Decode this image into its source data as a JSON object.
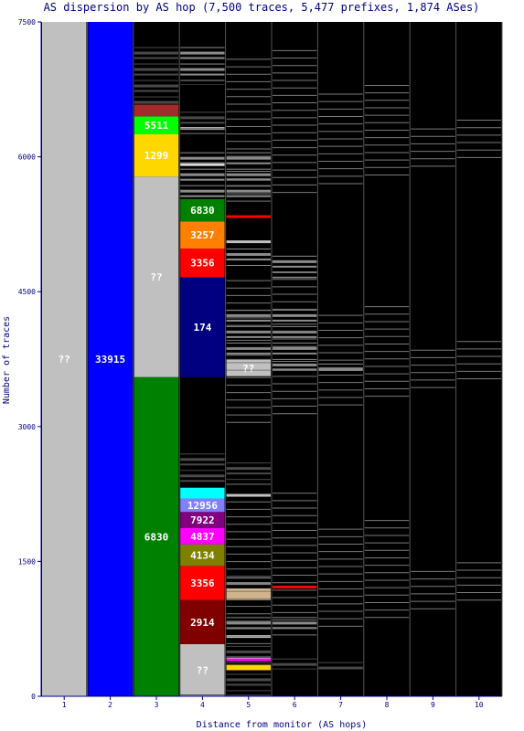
{
  "chart_data": {
    "type": "bar",
    "title": "AS dispersion by AS hop (7,500 traces, 5,477 prefixes, 1,874 ASes)",
    "xlabel": "Distance from monitor (AS hops)",
    "ylabel": "Number of traces",
    "ylim": [
      0,
      7500
    ],
    "yticks": [
      "0",
      "1500",
      "3000",
      "4500",
      "6000",
      "7500"
    ],
    "categories": [
      "1",
      "2",
      "3",
      "4",
      "5",
      "6",
      "7",
      "8",
      "9",
      "10"
    ],
    "colors": {
      "background": "#000000",
      "unknown": "#c0c0c0",
      "minor_light": "#8c8c8c",
      "minor_dark": "#4a4a4a",
      "label_text": "#ffffff",
      "title_text": "#000080"
    },
    "segments": [
      {
        "hop": 1,
        "from": 0,
        "to": 7500,
        "label": "??",
        "color": "#c0c0c0"
      },
      {
        "hop": 2,
        "from": 0,
        "to": 7500,
        "label": "33915",
        "color": "#0000ff"
      },
      {
        "hop": 3,
        "from": 0,
        "to": 3550,
        "label": "6830",
        "color": "#008000"
      },
      {
        "hop": 3,
        "from": 3550,
        "to": 5780,
        "label": "??",
        "color": "#c0c0c0"
      },
      {
        "hop": 3,
        "from": 5780,
        "to": 6250,
        "label": "1299",
        "color": "#ffd700"
      },
      {
        "hop": 3,
        "from": 6250,
        "to": 6450,
        "label": "5511",
        "color": "#00ff00"
      },
      {
        "hop": 3,
        "from": 6450,
        "to": 6580,
        "label": "",
        "color": "#a52a2a"
      },
      {
        "hop": 4,
        "from": 0,
        "to": 580,
        "label": "??",
        "color": "#c0c0c0"
      },
      {
        "hop": 4,
        "from": 580,
        "to": 1070,
        "label": "2914",
        "color": "#800000"
      },
      {
        "hop": 4,
        "from": 1070,
        "to": 1450,
        "label": "3356",
        "color": "#ff0000"
      },
      {
        "hop": 4,
        "from": 1450,
        "to": 1690,
        "label": "4134",
        "color": "#808000"
      },
      {
        "hop": 4,
        "from": 1690,
        "to": 1870,
        "label": "4837",
        "color": "#ff00ff"
      },
      {
        "hop": 4,
        "from": 1870,
        "to": 2050,
        "label": "7922",
        "color": "#800080"
      },
      {
        "hop": 4,
        "from": 2050,
        "to": 2200,
        "label": "12956",
        "color": "#8080ff"
      },
      {
        "hop": 4,
        "from": 2200,
        "to": 2320,
        "label": "",
        "color": "#00ffff"
      },
      {
        "hop": 4,
        "from": 3550,
        "to": 4660,
        "label": "174",
        "color": "#000080"
      },
      {
        "hop": 4,
        "from": 4660,
        "to": 4980,
        "label": "3356",
        "color": "#ff0000"
      },
      {
        "hop": 4,
        "from": 4980,
        "to": 5280,
        "label": "3257",
        "color": "#ff8000"
      },
      {
        "hop": 4,
        "from": 5280,
        "to": 5530,
        "label": "6830",
        "color": "#008000"
      },
      {
        "hop": 5,
        "from": 3560,
        "to": 3740,
        "label": "??",
        "color": "#c0c0c0"
      },
      {
        "hop": 5,
        "from": 1070,
        "to": 1200,
        "label": "",
        "color": "#d2b48c"
      },
      {
        "hop": 5,
        "from": 290,
        "to": 350,
        "label": "",
        "color": "#ffd700"
      }
    ],
    "minor_bands": [
      {
        "hop": 3,
        "from": 6580,
        "to": 7220,
        "shade": "dark"
      },
      {
        "hop": 4,
        "from": 2350,
        "to": 2700,
        "shade": "dark"
      },
      {
        "hop": 4,
        "from": 5550,
        "to": 6050,
        "shade": "light"
      },
      {
        "hop": 4,
        "from": 6250,
        "to": 6500,
        "shade": "dark"
      },
      {
        "hop": 4,
        "from": 6800,
        "to": 7220,
        "shade": "light"
      },
      {
        "hop": 4,
        "from": 0,
        "to": 20,
        "shade": "dark"
      },
      {
        "hop": 5,
        "from": 0,
        "to": 250,
        "shade": "dark"
      },
      {
        "hop": 5,
        "from": 360,
        "to": 560,
        "shade": "dark"
      },
      {
        "hop": 5,
        "from": 700,
        "to": 880,
        "shade": "light"
      },
      {
        "hop": 5,
        "from": 1210,
        "to": 1320,
        "shade": "light"
      },
      {
        "hop": 5,
        "from": 3740,
        "to": 4300,
        "shade": "light"
      },
      {
        "hop": 5,
        "from": 4780,
        "to": 4980,
        "shade": "light"
      },
      {
        "hop": 5,
        "from": 5550,
        "to": 6050,
        "shade": "light"
      },
      {
        "hop": 5,
        "from": 2350,
        "to": 2600,
        "shade": "dark"
      },
      {
        "hop": 6,
        "from": 3620,
        "to": 4300,
        "shade": "light"
      },
      {
        "hop": 6,
        "from": 4650,
        "to": 4900,
        "shade": "light"
      },
      {
        "hop": 6,
        "from": 300,
        "to": 420,
        "shade": "dark"
      },
      {
        "hop": 6,
        "from": 700,
        "to": 880,
        "shade": "light"
      },
      {
        "hop": 7,
        "from": 3600,
        "to": 3700,
        "shade": "light"
      },
      {
        "hop": 7,
        "from": 300,
        "to": 380,
        "shade": "dark"
      }
    ],
    "segment_lines": [
      {
        "hop": 4,
        "y": 5920,
        "color": "#ffffff"
      },
      {
        "hop": 5,
        "y": 5340,
        "color": "#ff0000"
      },
      {
        "hop": 5,
        "y": 5060,
        "color": "#c0c0c0"
      },
      {
        "hop": 5,
        "y": 2240,
        "color": "#c0c0c0"
      },
      {
        "hop": 5,
        "y": 670,
        "color": "#c0c0c0"
      },
      {
        "hop": 5,
        "y": 430,
        "color": "#c0c0c0"
      },
      {
        "hop": 5,
        "y": 410,
        "color": "#ff00ff"
      },
      {
        "hop": 4,
        "y": 6320,
        "color": "#c0c0c0"
      },
      {
        "hop": 6,
        "y": 1220,
        "color": "#ff0000"
      }
    ]
  }
}
